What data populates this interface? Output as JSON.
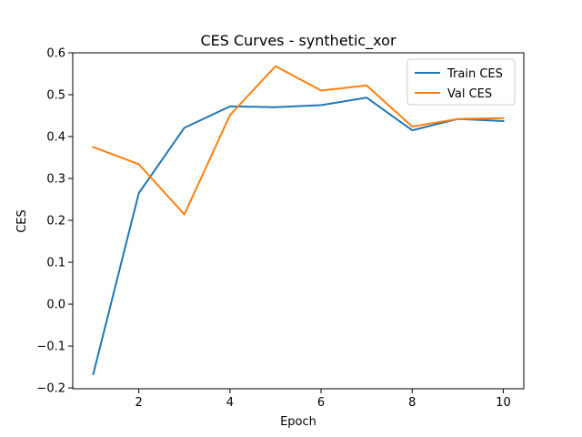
{
  "chart_data": {
    "type": "line",
    "title": "CES Curves - synthetic_xor",
    "xlabel": "Epoch",
    "ylabel": "CES",
    "x": [
      1,
      2,
      3,
      4,
      5,
      6,
      7,
      8,
      9,
      10
    ],
    "xlim": [
      0.55,
      10.45
    ],
    "ylim": [
      -0.202,
      0.6
    ],
    "xticks": [
      2,
      4,
      6,
      8,
      10
    ],
    "yticks": [
      -0.2,
      -0.1,
      0.0,
      0.1,
      0.2,
      0.3,
      0.4,
      0.5,
      0.6
    ],
    "xtick_labels": [
      "2",
      "4",
      "6",
      "8",
      "10"
    ],
    "ytick_labels": [
      "−0.2",
      "−0.1",
      "0.0",
      "0.1",
      "0.2",
      "0.3",
      "0.4",
      "0.5",
      "0.6"
    ],
    "grid": false,
    "legend_position": "top-right",
    "series": [
      {
        "name": "Train CES",
        "color": "#1f77b4",
        "values": [
          -0.167,
          0.265,
          0.421,
          0.472,
          0.47,
          0.475,
          0.493,
          0.415,
          0.442,
          0.437
        ]
      },
      {
        "name": "Val CES",
        "color": "#ff7f0e",
        "values": [
          0.375,
          0.334,
          0.214,
          0.451,
          0.568,
          0.51,
          0.522,
          0.424,
          0.442,
          0.444
        ]
      }
    ]
  }
}
